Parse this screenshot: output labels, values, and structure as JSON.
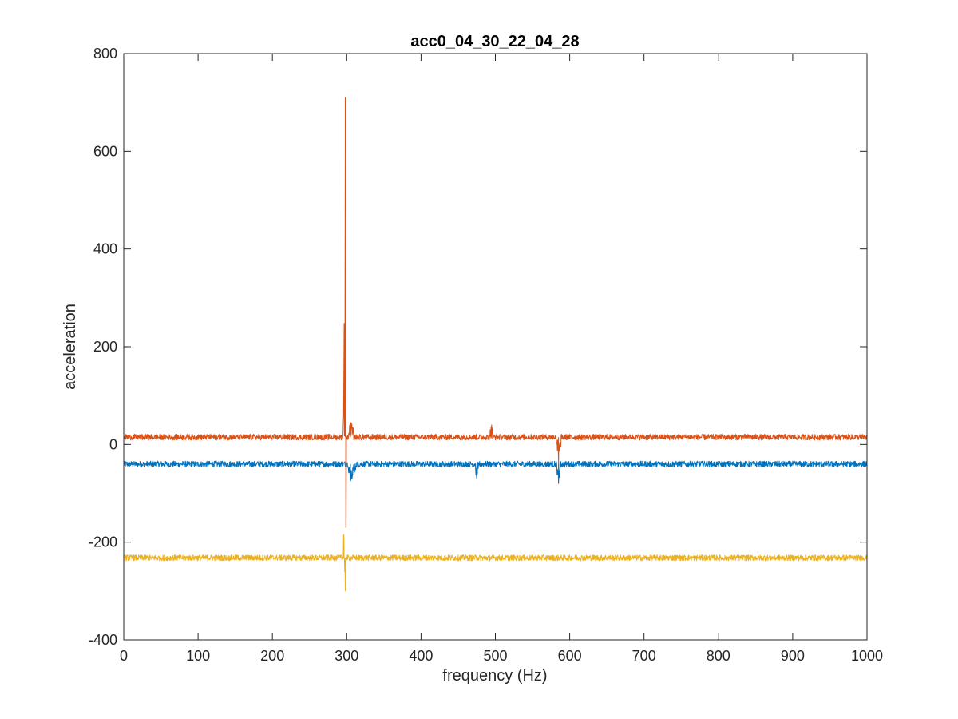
{
  "chart_data": {
    "type": "line",
    "title": "acc0_04_30_22_04_28",
    "xlabel": "frequency (Hz)",
    "ylabel": "acceleration",
    "xlim": [
      0,
      1000
    ],
    "ylim": [
      -400,
      800
    ],
    "xticks": [
      0,
      100,
      200,
      300,
      400,
      500,
      600,
      700,
      800,
      900,
      1000
    ],
    "yticks": [
      -400,
      -200,
      0,
      200,
      400,
      600,
      800
    ],
    "xtick_labels": [
      "0",
      "100",
      "200",
      "300",
      "400",
      "500",
      "600",
      "700",
      "800",
      "900",
      "1000"
    ],
    "ytick_labels": [
      "-400",
      "-200",
      "0",
      "200",
      "400",
      "600",
      "800"
    ],
    "grid": false,
    "box": true,
    "series": [
      {
        "color": "#0072BD",
        "baseline": -40,
        "noise": 6,
        "points": [
          [
            0,
            -36
          ],
          [
            70,
            -42
          ],
          [
            75,
            -50
          ],
          [
            100,
            -48
          ],
          [
            200,
            -44
          ],
          [
            280,
            -42
          ],
          [
            295,
            -30
          ],
          [
            300,
            -45
          ],
          [
            305,
            -75
          ],
          [
            310,
            -60
          ],
          [
            330,
            -44
          ],
          [
            350,
            -50
          ],
          [
            365,
            -48
          ],
          [
            370,
            -42
          ],
          [
            400,
            -44
          ],
          [
            470,
            -44
          ],
          [
            475,
            -70
          ],
          [
            480,
            -44
          ],
          [
            580,
            -42
          ],
          [
            585,
            -80
          ],
          [
            590,
            -42
          ],
          [
            600,
            -40
          ],
          [
            620,
            -42
          ],
          [
            700,
            -42
          ],
          [
            800,
            -42
          ],
          [
            860,
            -42
          ],
          [
            865,
            -25
          ],
          [
            870,
            -40
          ],
          [
            900,
            -42
          ],
          [
            1000,
            -42
          ]
        ]
      },
      {
        "color": "#D95319",
        "baseline": 15,
        "noise": 6,
        "points": [
          [
            0,
            15
          ],
          [
            100,
            14
          ],
          [
            200,
            14
          ],
          [
            230,
            16
          ],
          [
            295,
            14
          ],
          [
            298,
            710
          ],
          [
            299,
            -170
          ],
          [
            300,
            20
          ],
          [
            305,
            45
          ],
          [
            310,
            30
          ],
          [
            340,
            20
          ],
          [
            350,
            14
          ],
          [
            365,
            14
          ],
          [
            370,
            18
          ],
          [
            400,
            18
          ],
          [
            490,
            22
          ],
          [
            495,
            40
          ],
          [
            500,
            22
          ],
          [
            580,
            20
          ],
          [
            585,
            -40
          ],
          [
            590,
            18
          ],
          [
            600,
            16
          ],
          [
            620,
            10
          ],
          [
            700,
            16
          ],
          [
            800,
            18
          ],
          [
            890,
            20
          ],
          [
            895,
            30
          ],
          [
            900,
            18
          ],
          [
            1000,
            20
          ]
        ]
      },
      {
        "color": "#EDB120",
        "baseline": -232,
        "noise": 6,
        "points": [
          [
            0,
            -235
          ],
          [
            100,
            -232
          ],
          [
            200,
            -232
          ],
          [
            230,
            -230
          ],
          [
            295,
            -232
          ],
          [
            296,
            -185
          ],
          [
            298,
            -300
          ],
          [
            300,
            -215
          ],
          [
            305,
            -250
          ],
          [
            310,
            -225
          ],
          [
            350,
            -230
          ],
          [
            365,
            -232
          ],
          [
            370,
            -220
          ],
          [
            400,
            -232
          ],
          [
            500,
            -232
          ],
          [
            600,
            -232
          ],
          [
            700,
            -234
          ],
          [
            800,
            -232
          ],
          [
            890,
            -225
          ],
          [
            900,
            -232
          ],
          [
            1000,
            -232
          ]
        ]
      }
    ]
  }
}
